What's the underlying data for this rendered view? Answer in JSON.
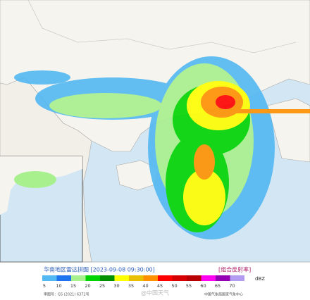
{
  "header": {
    "title": "华南地区雷达拼图 [2023-09-08 09:30:00]",
    "product": "[组合反射率]"
  },
  "legend": {
    "unit": "dBZ",
    "levels": [
      {
        "value": 5,
        "color": "#52b8f2"
      },
      {
        "value": 10,
        "color": "#1e74ee"
      },
      {
        "value": 15,
        "color": "#a8f08e"
      },
      {
        "value": 20,
        "color": "#00d400"
      },
      {
        "value": 25,
        "color": "#009000"
      },
      {
        "value": 30,
        "color": "#ffff00"
      },
      {
        "value": 35,
        "color": "#e8c000"
      },
      {
        "value": 40,
        "color": "#ff9000"
      },
      {
        "value": 45,
        "color": "#ff0000"
      },
      {
        "value": 50,
        "color": "#d60000"
      },
      {
        "value": 55,
        "color": "#b80000"
      },
      {
        "value": 60,
        "color": "#ff00f0"
      },
      {
        "value": 65,
        "color": "#9600b4"
      },
      {
        "value": 70,
        "color": "#b29cf0"
      }
    ]
  },
  "footer": {
    "map_number": "审图号：GS (2021) 6372号",
    "source": "中国气象局国家气象中心"
  },
  "watermark": "@中国天气"
}
